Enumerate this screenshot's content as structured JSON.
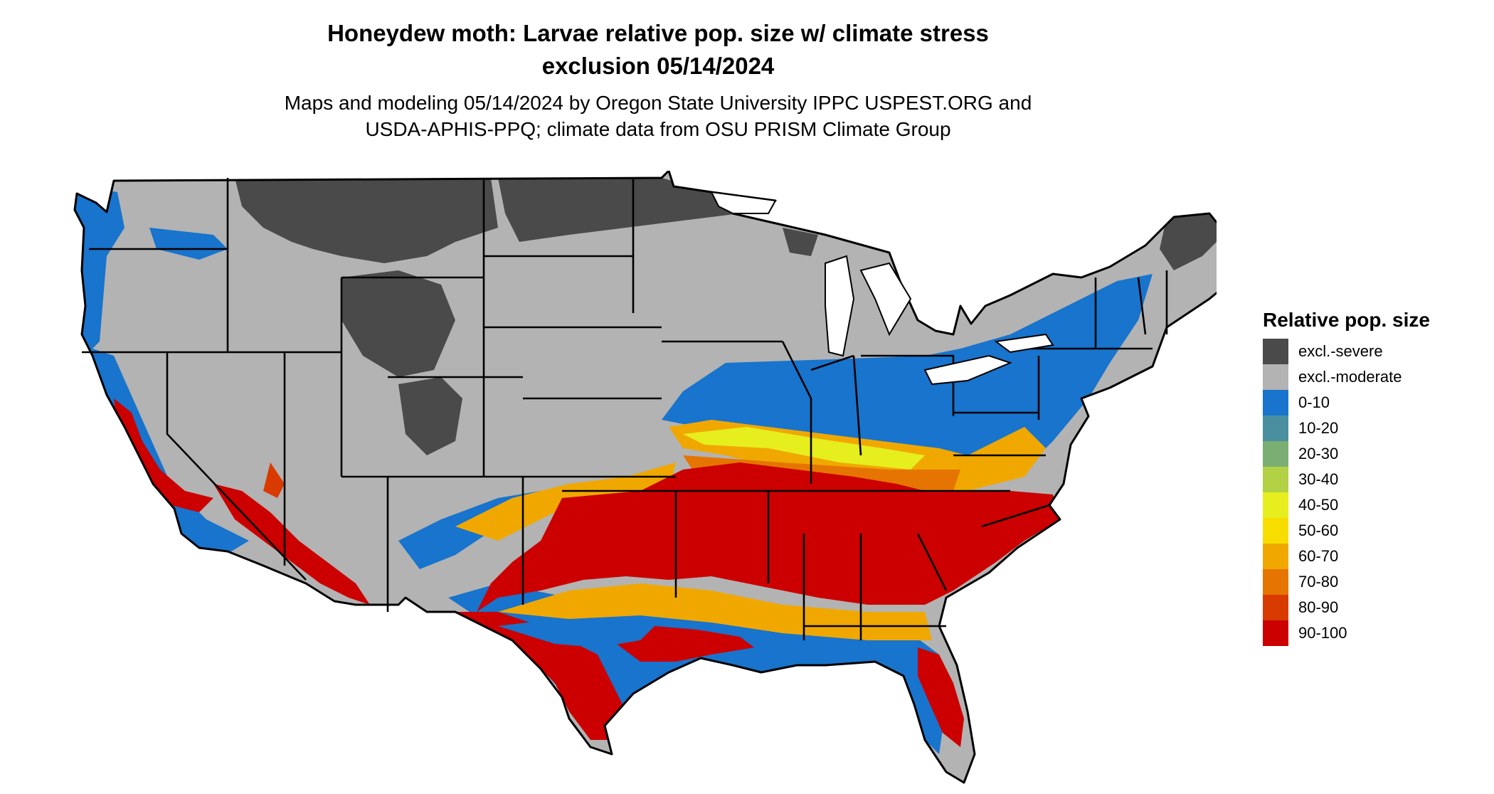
{
  "title_line1": "Honeydew moth: Larvae relative pop. size w/ climate stress",
  "title_line2": "exclusion 05/14/2024",
  "subtitle_line1": "Maps and modeling 05/14/2024 by Oregon State University IPPC USPEST.ORG and",
  "subtitle_line2": "USDA-APHIS-PPQ; climate data from OSU PRISM Climate Group",
  "legend": {
    "title": "Relative pop. size",
    "items": [
      {
        "label": "excl.-severe",
        "color": "#4a4a4a"
      },
      {
        "label": "excl.-moderate",
        "color": "#b3b3b3"
      },
      {
        "label": "0-10",
        "color": "#1874cd"
      },
      {
        "label": "10-20",
        "color": "#4a8fa0"
      },
      {
        "label": "20-30",
        "color": "#7bae73"
      },
      {
        "label": "30-40",
        "color": "#b2d145"
      },
      {
        "label": "40-50",
        "color": "#e6ee1e"
      },
      {
        "label": "50-60",
        "color": "#f7de00"
      },
      {
        "label": "60-70",
        "color": "#f0a800"
      },
      {
        "label": "70-80",
        "color": "#e57500"
      },
      {
        "label": "80-90",
        "color": "#d93a00"
      },
      {
        "label": "90-100",
        "color": "#cc0000"
      }
    ]
  }
}
